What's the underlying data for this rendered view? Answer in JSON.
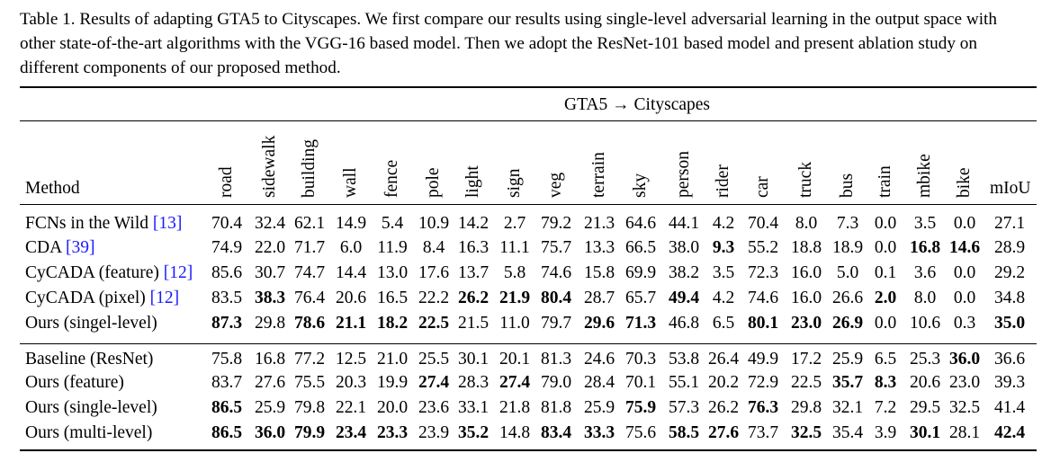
{
  "caption": {
    "text": "Table 1. Results of adapting GTA5 to Cityscapes. We first compare our results using single-level adversarial learning in the output space with other state-of-the-art algorithms with the VGG-16 based model. Then we adopt the ResNet-101 based model and present ablation study on different components of our proposed method."
  },
  "table": {
    "group_header": "GTA5 → Cityscapes",
    "method_header": "Method",
    "columns": [
      "road",
      "sidewalk",
      "building",
      "wall",
      "fence",
      "pole",
      "light",
      "sign",
      "veg",
      "terrain",
      "sky",
      "person",
      "rider",
      "car",
      "truck",
      "bus",
      "train",
      "mbike",
      "bike"
    ],
    "miou_header": "mIoU",
    "rows": [
      {
        "method": "FCNs in the Wild ",
        "cite": "[13]",
        "values": [
          "70.4",
          "32.4",
          "62.1",
          "14.9",
          "5.4",
          "10.9",
          "14.2",
          "2.7",
          "79.2",
          "21.3",
          "64.6",
          "44.1",
          "4.2",
          "70.4",
          "8.0",
          "7.3",
          "0.0",
          "3.5",
          "0.0"
        ],
        "miou": "27.1",
        "bold": []
      },
      {
        "method": "CDA ",
        "cite": "[39]",
        "values": [
          "74.9",
          "22.0",
          "71.7",
          "6.0",
          "11.9",
          "8.4",
          "16.3",
          "11.1",
          "75.7",
          "13.3",
          "66.5",
          "38.0",
          "9.3",
          "55.2",
          "18.8",
          "18.9",
          "0.0",
          "16.8",
          "14.6"
        ],
        "miou": "28.9",
        "bold": [
          12,
          17,
          18
        ]
      },
      {
        "method": "CyCADA (feature) ",
        "cite": "[12]",
        "values": [
          "85.6",
          "30.7",
          "74.7",
          "14.4",
          "13.0",
          "17.6",
          "13.7",
          "5.8",
          "74.6",
          "15.8",
          "69.9",
          "38.2",
          "3.5",
          "72.3",
          "16.0",
          "5.0",
          "0.1",
          "3.6",
          "0.0"
        ],
        "miou": "29.2",
        "bold": []
      },
      {
        "method": "CyCADA (pixel) ",
        "cite": "[12]",
        "values": [
          "83.5",
          "38.3",
          "76.4",
          "20.6",
          "16.5",
          "22.2",
          "26.2",
          "21.9",
          "80.4",
          "28.7",
          "65.7",
          "49.4",
          "4.2",
          "74.6",
          "16.0",
          "26.6",
          "2.0",
          "8.0",
          "0.0"
        ],
        "miou": "34.8",
        "bold": [
          1,
          6,
          7,
          8,
          11,
          16
        ]
      },
      {
        "method": "Ours (singel-level)",
        "cite": "",
        "values": [
          "87.3",
          "29.8",
          "78.6",
          "21.1",
          "18.2",
          "22.5",
          "21.5",
          "11.0",
          "79.7",
          "29.6",
          "71.3",
          "46.8",
          "6.5",
          "80.1",
          "23.0",
          "26.9",
          "0.0",
          "10.6",
          "0.3"
        ],
        "miou": "35.0",
        "bold": [
          0,
          2,
          3,
          4,
          5,
          9,
          10,
          13,
          14,
          15,
          19
        ]
      },
      {
        "method": "Baseline (ResNet)",
        "cite": "",
        "values": [
          "75.8",
          "16.8",
          "77.2",
          "12.5",
          "21.0",
          "25.5",
          "30.1",
          "20.1",
          "81.3",
          "24.6",
          "70.3",
          "53.8",
          "26.4",
          "49.9",
          "17.2",
          "25.9",
          "6.5",
          "25.3",
          "36.0"
        ],
        "miou": "36.6",
        "bold": [
          18
        ]
      },
      {
        "method": "Ours (feature)",
        "cite": "",
        "values": [
          "83.7",
          "27.6",
          "75.5",
          "20.3",
          "19.9",
          "27.4",
          "28.3",
          "27.4",
          "79.0",
          "28.4",
          "70.1",
          "55.1",
          "20.2",
          "72.9",
          "22.5",
          "35.7",
          "8.3",
          "20.6",
          "23.0"
        ],
        "miou": "39.3",
        "bold": [
          5,
          7,
          15,
          16
        ]
      },
      {
        "method": "Ours (single-level)",
        "cite": "",
        "values": [
          "86.5",
          "25.9",
          "79.8",
          "22.1",
          "20.0",
          "23.6",
          "33.1",
          "21.8",
          "81.8",
          "25.9",
          "75.9",
          "57.3",
          "26.2",
          "76.3",
          "29.8",
          "32.1",
          "7.2",
          "29.5",
          "32.5"
        ],
        "miou": "41.4",
        "bold": [
          0,
          10,
          13
        ]
      },
      {
        "method": "Ours (multi-level)",
        "cite": "",
        "values": [
          "86.5",
          "36.0",
          "79.9",
          "23.4",
          "23.3",
          "23.9",
          "35.2",
          "14.8",
          "83.4",
          "33.3",
          "75.6",
          "58.5",
          "27.6",
          "73.7",
          "32.5",
          "35.4",
          "3.9",
          "30.1",
          "28.1"
        ],
        "miou": "42.4",
        "bold": [
          0,
          1,
          2,
          3,
          4,
          6,
          8,
          9,
          11,
          12,
          14,
          17,
          19
        ]
      }
    ]
  }
}
